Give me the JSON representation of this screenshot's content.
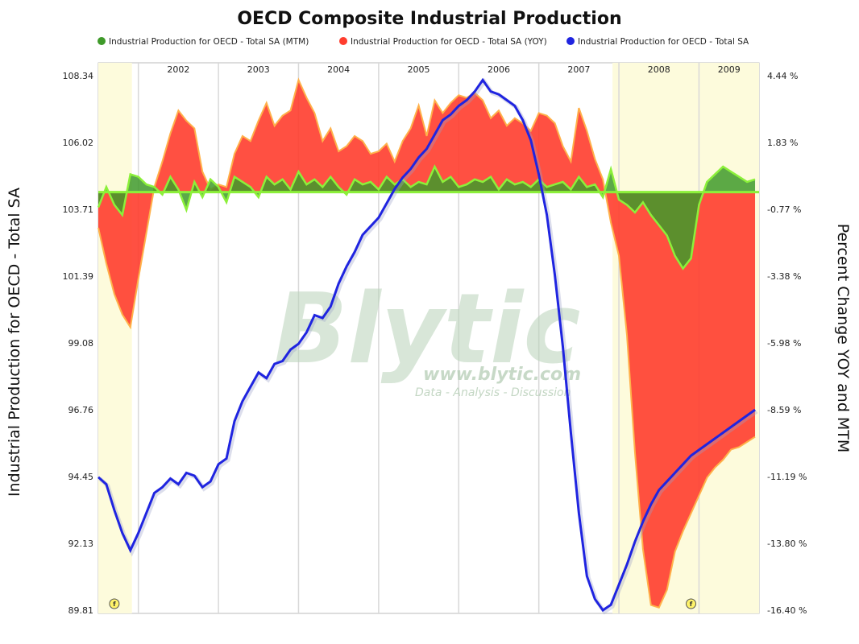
{
  "chart_data": {
    "type": "area",
    "title": "OECD Composite Industrial Production",
    "ylabel_left": "Industrial Production for OECD - Total SA",
    "ylabel_right": "Percent Change YOY and MTM",
    "y_left_ticks": [
      "108.34",
      "106.02",
      "103.71",
      "101.39",
      "99.08",
      "96.76",
      "94.45",
      "92.13",
      "89.81"
    ],
    "y_right_ticks": [
      "4.44 %",
      "1.83 %",
      "-0.77 %",
      "-3.38 %",
      "-5.98 %",
      "-8.59 %",
      "-11.19 %",
      "-13.80 %",
      "-16.40 %"
    ],
    "ylim_left": [
      89.81,
      108.34
    ],
    "ylim_right": [
      -16.4,
      4.44
    ],
    "years": [
      "2002",
      "2003",
      "2004",
      "2005",
      "2006",
      "2007",
      "2008",
      "2009"
    ],
    "x_start": 2001.5,
    "x_end": 2009.75,
    "legend_placement": "top",
    "recession_shading": [
      [
        2001.5,
        2001.92
      ],
      [
        2007.92,
        2009.75
      ]
    ],
    "markers": [
      {
        "label": "f",
        "x": 2001.7
      },
      {
        "label": "f",
        "x": 2008.9
      }
    ],
    "colors": {
      "mtm": "#3f9a2a",
      "mtm_stroke": "#8cf03a",
      "yoy": "#ff3d2e",
      "yoy_stroke": "#ffb14a",
      "level": "#1f24e0",
      "recession": "#fdfbdc"
    },
    "series": [
      {
        "name": "Industrial Production for OECD - Total SA (MTM)",
        "unit": "percent",
        "axis": "right",
        "x": [
          2001.5,
          2001.6,
          2001.7,
          2001.8,
          2001.9,
          2002.0,
          2002.1,
          2002.2,
          2002.3,
          2002.4,
          2002.5,
          2002.6,
          2002.7,
          2002.8,
          2002.9,
          2003.0,
          2003.1,
          2003.2,
          2003.3,
          2003.4,
          2003.5,
          2003.6,
          2003.7,
          2003.8,
          2003.9,
          2004.0,
          2004.1,
          2004.2,
          2004.3,
          2004.4,
          2004.5,
          2004.6,
          2004.7,
          2004.8,
          2004.9,
          2005.0,
          2005.1,
          2005.2,
          2005.3,
          2005.4,
          2005.5,
          2005.6,
          2005.7,
          2005.8,
          2005.9,
          2006.0,
          2006.1,
          2006.2,
          2006.3,
          2006.4,
          2006.5,
          2006.6,
          2006.7,
          2006.8,
          2006.9,
          2007.0,
          2007.1,
          2007.2,
          2007.3,
          2007.4,
          2007.5,
          2007.6,
          2007.7,
          2007.8,
          2007.9,
          2008.0,
          2008.1,
          2008.2,
          2008.3,
          2008.4,
          2008.5,
          2008.6,
          2008.7,
          2008.8,
          2008.9,
          2009.0,
          2009.1,
          2009.2,
          2009.3,
          2009.4,
          2009.5,
          2009.6,
          2009.7
        ],
        "values": [
          -0.6,
          0.2,
          -0.5,
          -0.9,
          0.7,
          0.6,
          0.3,
          0.2,
          -0.1,
          0.6,
          0.1,
          -0.7,
          0.4,
          -0.2,
          0.5,
          0.2,
          -0.4,
          0.6,
          0.4,
          0.2,
          -0.2,
          0.6,
          0.3,
          0.5,
          0.1,
          0.8,
          0.3,
          0.5,
          0.2,
          0.6,
          0.2,
          -0.1,
          0.5,
          0.3,
          0.4,
          0.1,
          0.6,
          0.3,
          0.5,
          0.2,
          0.4,
          0.3,
          1.0,
          0.4,
          0.6,
          0.2,
          0.3,
          0.5,
          0.4,
          0.6,
          0.1,
          0.5,
          0.3,
          0.4,
          0.2,
          0.5,
          0.2,
          0.3,
          0.4,
          0.1,
          0.6,
          0.2,
          0.3,
          -0.2,
          0.9,
          -0.3,
          -0.5,
          -0.8,
          -0.4,
          -0.9,
          -1.3,
          -1.7,
          -2.5,
          -3.0,
          -2.6,
          -0.5,
          0.4,
          0.7,
          1.0,
          0.8,
          0.6,
          0.4,
          0.5
        ]
      },
      {
        "name": "Industrial Production for OECD - Total SA (YOY)",
        "unit": "percent",
        "axis": "right",
        "x": [
          2001.5,
          2001.6,
          2001.7,
          2001.8,
          2001.9,
          2002.0,
          2002.1,
          2002.2,
          2002.3,
          2002.4,
          2002.5,
          2002.6,
          2002.7,
          2002.8,
          2002.9,
          2003.0,
          2003.1,
          2003.2,
          2003.3,
          2003.4,
          2003.5,
          2003.6,
          2003.7,
          2003.8,
          2003.9,
          2004.0,
          2004.1,
          2004.2,
          2004.3,
          2004.4,
          2004.5,
          2004.6,
          2004.7,
          2004.8,
          2004.9,
          2005.0,
          2005.1,
          2005.2,
          2005.3,
          2005.4,
          2005.5,
          2005.6,
          2005.7,
          2005.8,
          2005.9,
          2006.0,
          2006.1,
          2006.2,
          2006.3,
          2006.4,
          2006.5,
          2006.6,
          2006.7,
          2006.8,
          2006.9,
          2007.0,
          2007.1,
          2007.2,
          2007.3,
          2007.4,
          2007.5,
          2007.6,
          2007.7,
          2007.8,
          2007.9,
          2008.0,
          2008.1,
          2008.2,
          2008.3,
          2008.4,
          2008.5,
          2008.6,
          2008.7,
          2008.8,
          2008.9,
          2009.0,
          2009.1,
          2009.2,
          2009.3,
          2009.4,
          2009.5,
          2009.6,
          2009.7
        ],
        "values": [
          -1.4,
          -2.8,
          -4.0,
          -4.8,
          -5.3,
          -3.4,
          -1.6,
          0.2,
          1.2,
          2.3,
          3.2,
          2.8,
          2.5,
          0.8,
          0.1,
          0.3,
          0.2,
          1.5,
          2.2,
          2.0,
          2.8,
          3.5,
          2.6,
          3.0,
          3.2,
          4.4,
          3.7,
          3.1,
          2.0,
          2.5,
          1.6,
          1.8,
          2.2,
          2.0,
          1.5,
          1.6,
          1.9,
          1.2,
          2.0,
          2.5,
          3.4,
          2.2,
          3.6,
          3.1,
          3.5,
          3.8,
          3.7,
          3.9,
          3.6,
          2.9,
          3.2,
          2.6,
          2.9,
          2.7,
          2.4,
          3.1,
          3.0,
          2.7,
          1.8,
          1.2,
          3.3,
          2.4,
          1.3,
          0.5,
          -1.2,
          -2.5,
          -5.6,
          -10.2,
          -14.0,
          -16.2,
          -16.3,
          -15.6,
          -14.1,
          -13.3,
          -12.6,
          -11.9,
          -11.2,
          -10.8,
          -10.5,
          -10.1,
          -10.0,
          -9.8,
          -9.6
        ]
      },
      {
        "name": "Industrial Production for OECD - Total SA",
        "unit": "index",
        "axis": "left",
        "x": [
          2001.5,
          2001.6,
          2001.7,
          2001.8,
          2001.9,
          2002.0,
          2002.1,
          2002.2,
          2002.3,
          2002.4,
          2002.5,
          2002.6,
          2002.7,
          2002.8,
          2002.9,
          2003.0,
          2003.1,
          2003.2,
          2003.3,
          2003.4,
          2003.5,
          2003.6,
          2003.7,
          2003.8,
          2003.9,
          2004.0,
          2004.1,
          2004.2,
          2004.3,
          2004.4,
          2004.5,
          2004.6,
          2004.7,
          2004.8,
          2004.9,
          2005.0,
          2005.1,
          2005.2,
          2005.3,
          2005.4,
          2005.5,
          2005.6,
          2005.7,
          2005.8,
          2005.9,
          2006.0,
          2006.1,
          2006.2,
          2006.3,
          2006.4,
          2006.5,
          2006.6,
          2006.7,
          2006.8,
          2006.9,
          2007.0,
          2007.1,
          2007.2,
          2007.3,
          2007.4,
          2007.5,
          2007.6,
          2007.7,
          2007.8,
          2007.9,
          2008.0,
          2008.1,
          2008.2,
          2008.3,
          2008.4,
          2008.5,
          2008.6,
          2008.7,
          2008.8,
          2008.9,
          2009.0,
          2009.1,
          2009.2,
          2009.3,
          2009.4,
          2009.5,
          2009.6,
          2009.7
        ],
        "values": [
          94.45,
          94.2,
          93.3,
          92.5,
          91.9,
          92.5,
          93.2,
          93.9,
          94.1,
          94.4,
          94.2,
          94.6,
          94.5,
          94.1,
          94.3,
          94.9,
          95.1,
          96.4,
          97.1,
          97.6,
          98.1,
          97.9,
          98.4,
          98.5,
          98.9,
          99.1,
          99.5,
          100.1,
          100.0,
          100.4,
          101.2,
          101.8,
          102.3,
          102.9,
          103.2,
          103.5,
          104.0,
          104.5,
          104.9,
          105.2,
          105.6,
          105.9,
          106.4,
          106.9,
          107.1,
          107.4,
          107.6,
          107.9,
          108.3,
          107.9,
          107.8,
          107.6,
          107.4,
          106.9,
          106.2,
          105.0,
          103.6,
          101.5,
          99.0,
          96.0,
          93.2,
          91.0,
          90.2,
          89.81,
          90.0,
          90.7,
          91.4,
          92.2,
          92.9,
          93.5,
          94.0,
          94.3,
          94.6,
          94.9,
          95.2,
          95.4,
          95.6,
          95.8,
          96.0,
          96.2,
          96.4,
          96.6,
          96.8
        ]
      }
    ]
  }
}
